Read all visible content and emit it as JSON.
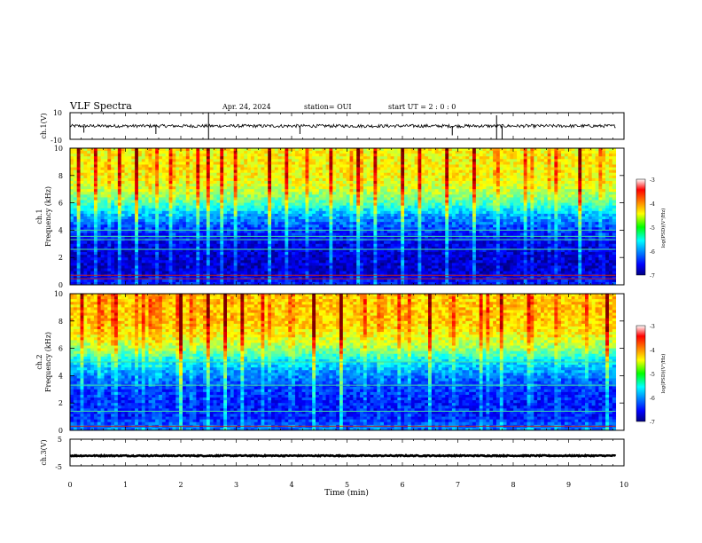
{
  "header": {
    "title": "VLF Spectra",
    "date": "Apr. 24, 2024",
    "station": "station= OUI",
    "start": "start UT =  2 : 0 : 0"
  },
  "chart_data": [
    {
      "type": "line",
      "panel": "ch1-waveform",
      "ylabel": "ch.1(V)",
      "ylim": [
        -10,
        10
      ],
      "yticks": [
        "10",
        "-10"
      ],
      "xlim": [
        0,
        10
      ],
      "x_data_end": 9.85,
      "baseline": 0,
      "noise_amplitude": 1.2,
      "spikes": [
        {
          "x": 2.5,
          "y": 10
        },
        {
          "x": 2.5,
          "y": -10
        },
        {
          "x": 1.55,
          "y": -6
        },
        {
          "x": 6.9,
          "y": -7
        },
        {
          "x": 7.7,
          "y": 8
        },
        {
          "x": 7.7,
          "y": -10
        },
        {
          "x": 7.8,
          "y": -10
        },
        {
          "x": 4.15,
          "y": -6
        },
        {
          "x": 0.25,
          "y": -5
        }
      ]
    },
    {
      "type": "heatmap",
      "panel": "ch1-spectrogram",
      "ylabel": "Frequency  (kHz)",
      "channel_label": "ch.1",
      "ylim": [
        0,
        10
      ],
      "yticks": [
        "0",
        "2",
        "4",
        "6",
        "8",
        "10"
      ],
      "xlim": [
        0,
        10
      ],
      "x_data_end": 9.85,
      "colorbar": {
        "label": "log(PSD)(V²/Hz)",
        "min": -7,
        "max": -3,
        "ticks": [
          "-3",
          "-4",
          "-5",
          "-6",
          "-7"
        ]
      },
      "log_psd_profile": [
        {
          "f": 0,
          "v": -6.4
        },
        {
          "f": 1,
          "v": -6.7
        },
        {
          "f": 2,
          "v": -6.7
        },
        {
          "f": 3,
          "v": -6.6
        },
        {
          "f": 4,
          "v": -6.3
        },
        {
          "f": 5,
          "v": -5.9
        },
        {
          "f": 6,
          "v": -5.2
        },
        {
          "f": 7,
          "v": -4.7
        },
        {
          "f": 8,
          "v": -4.5
        },
        {
          "f": 9,
          "v": -4.5
        },
        {
          "f": 10,
          "v": -4.5
        }
      ],
      "lines_khz": [
        0.45,
        0.7,
        3.3,
        3.55,
        2.6,
        4.0
      ],
      "bursts_min": [
        0.15,
        0.45,
        0.9,
        1.2,
        1.55,
        1.8,
        2.3,
        2.5,
        2.75,
        3.0,
        3.6,
        3.9,
        4.3,
        4.7,
        5.2,
        5.5,
        6.0,
        6.3,
        6.8,
        7.3,
        7.7,
        8.2,
        8.8,
        9.2,
        9.6
      ]
    },
    {
      "type": "heatmap",
      "panel": "ch2-spectrogram",
      "ylabel": "Frequency  (kHz)",
      "channel_label": "ch.2",
      "ylim": [
        0,
        10
      ],
      "yticks": [
        "0",
        "2",
        "4",
        "6",
        "8",
        "10"
      ],
      "xlim": [
        0,
        10
      ],
      "x_data_end": 9.85,
      "colorbar": {
        "label": "log(PSD)(V²/Hz)",
        "min": -7,
        "max": -3,
        "ticks": [
          "-3",
          "-4",
          "-5",
          "-6",
          "-7"
        ]
      },
      "log_psd_profile": [
        {
          "f": 0,
          "v": -6.0
        },
        {
          "f": 1,
          "v": -6.4
        },
        {
          "f": 2,
          "v": -6.4
        },
        {
          "f": 3,
          "v": -6.3
        },
        {
          "f": 4,
          "v": -6.0
        },
        {
          "f": 5,
          "v": -5.6
        },
        {
          "f": 6,
          "v": -4.9
        },
        {
          "f": 7,
          "v": -4.5
        },
        {
          "f": 8,
          "v": -4.3
        },
        {
          "f": 9,
          "v": -4.3
        },
        {
          "f": 10,
          "v": -4.3
        }
      ],
      "lines_khz": [
        0.3,
        1.4,
        3.3,
        5.0
      ],
      "bursts_min": [
        0.2,
        0.5,
        0.85,
        1.3,
        1.6,
        2.0,
        2.5,
        2.8,
        3.1,
        3.5,
        4.0,
        4.4,
        4.9,
        5.3,
        5.6,
        6.1,
        6.5,
        6.9,
        7.4,
        7.8,
        8.3,
        8.8,
        9.3,
        9.7
      ]
    },
    {
      "type": "line",
      "panel": "ch3-waveform",
      "ylabel": "ch.3(V)",
      "xlabel": "Time  (min)",
      "ylim": [
        -5,
        5
      ],
      "yticks": [
        "5",
        "0",
        "-5"
      ],
      "xlim": [
        0,
        10
      ],
      "xticks": [
        "0",
        "1",
        "2",
        "3",
        "4",
        "5",
        "6",
        "7",
        "8",
        "9",
        "10"
      ],
      "x_data_end": 9.85,
      "baseline": -1.2,
      "noise_amplitude": 0.2
    }
  ]
}
